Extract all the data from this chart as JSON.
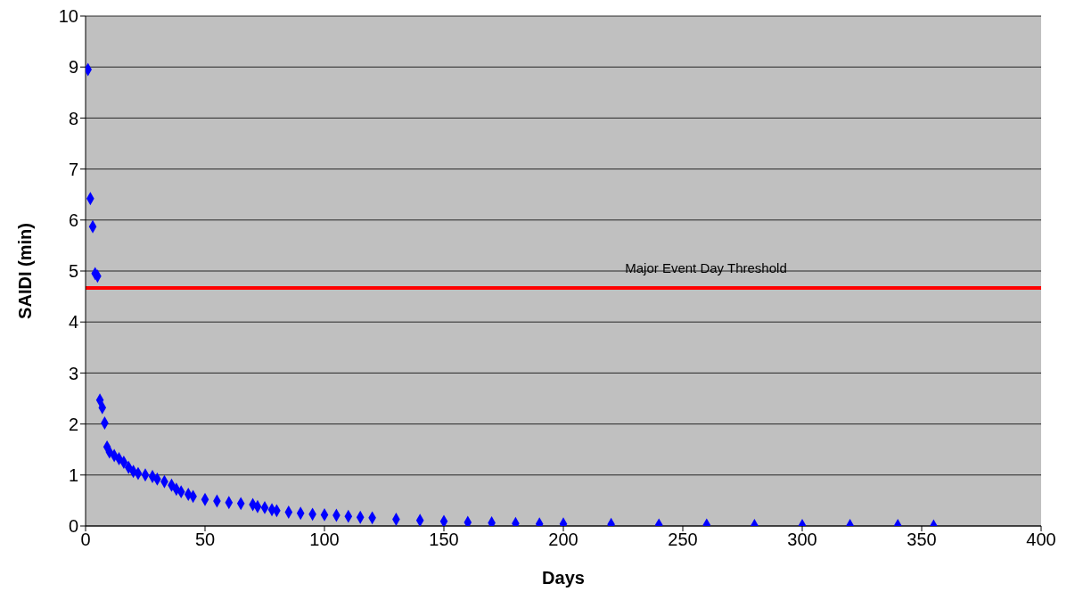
{
  "chart_data": {
    "type": "scatter",
    "xlabel": "Days",
    "ylabel": "SAIDI (min)",
    "x": [
      1,
      2,
      3,
      4,
      5,
      6,
      7,
      8,
      9,
      10,
      12,
      14,
      16,
      18,
      20,
      22,
      25,
      28,
      30,
      33,
      36,
      38,
      40,
      43,
      45,
      50,
      55,
      60,
      65,
      70,
      72,
      75,
      78,
      80,
      85,
      90,
      95,
      100,
      105,
      110,
      115,
      120,
      130,
      140,
      150,
      160,
      170,
      180,
      190,
      200,
      220,
      240,
      260,
      280,
      300,
      320,
      340,
      355
    ],
    "series": [
      {
        "color": "#0000ff",
        "values": [
          8.95,
          6.42,
          5.87,
          4.95,
          4.9,
          2.47,
          2.32,
          2.02,
          1.55,
          1.45,
          1.38,
          1.32,
          1.25,
          1.15,
          1.07,
          1.03,
          1.0,
          0.97,
          0.92,
          0.87,
          0.8,
          0.72,
          0.67,
          0.62,
          0.58,
          0.52,
          0.49,
          0.46,
          0.44,
          0.42,
          0.38,
          0.36,
          0.32,
          0.3,
          0.27,
          0.25,
          0.23,
          0.22,
          0.21,
          0.19,
          0.17,
          0.16,
          0.13,
          0.11,
          0.09,
          0.07,
          0.06,
          0.05,
          0.04,
          0.04,
          0.03,
          0.02,
          0.02,
          0.01,
          0.01,
          0.01,
          0.01,
          0
        ]
      }
    ],
    "marker": "diamond",
    "grid": "y",
    "xlim": [
      0,
      400
    ],
    "xticks": [
      0,
      50,
      100,
      150,
      200,
      250,
      300,
      350,
      400
    ],
    "ylim": [
      0,
      10
    ],
    "yticks": [
      0,
      1,
      2,
      3,
      4,
      5,
      6,
      7,
      8,
      9,
      10
    ],
    "ref_lines": [
      {
        "axis": "y",
        "value": 4.67,
        "label": "Major Event Day Threshold",
        "color": "#ff0000"
      }
    ]
  }
}
